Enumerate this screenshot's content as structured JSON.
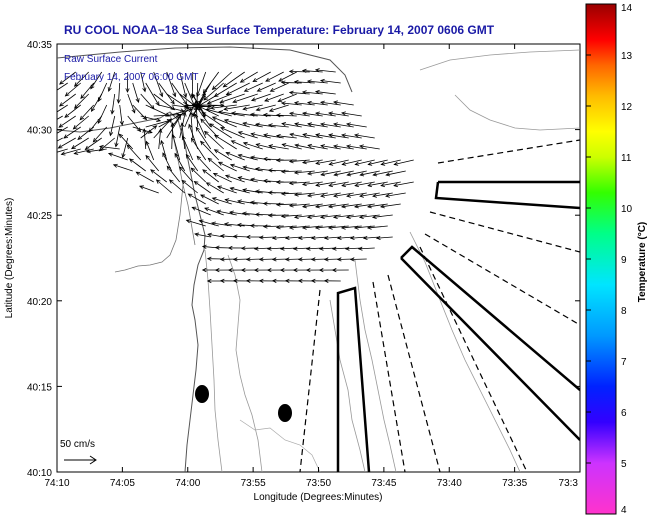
{
  "chart_data": {
    "type": "quiver-map",
    "title": "RU COOL  NOAA−18  Sea Surface Temperature:  February 14, 2007 0606 GMT",
    "inset_label_1": "Raw Surface Current",
    "inset_label_2": "February 14, 2007 06:00 GMT",
    "xlabel": "Longitude (Degrees:Minutes)",
    "ylabel": "Latitude (Degrees:Minutes)",
    "x_ticks": [
      "74:10",
      "74:05",
      "74:00",
      "73:55",
      "73:50",
      "73:45",
      "73:40",
      "73:35",
      "73:3"
    ],
    "y_ticks": [
      "40:35",
      "40:30",
      "40:25",
      "40:20",
      "40:15",
      "40:10"
    ],
    "xlim_deg": [
      -74.1667,
      -73.5
    ],
    "ylim_deg": [
      40.1667,
      40.5833
    ],
    "colorbar": {
      "label": "Temperature (°C)",
      "ticks": [
        "14",
        "13",
        "12",
        "11",
        "10",
        "9",
        "8",
        "7",
        "6",
        "5",
        "4"
      ],
      "range": [
        4,
        14
      ],
      "colors": [
        "#ff33cc",
        "#9900ff",
        "#0000ff",
        "#0099ff",
        "#00ffff",
        "#00ff66",
        "#66ff00",
        "#ffff00",
        "#ff9900",
        "#ff0000",
        "#990000"
      ]
    },
    "scale_label": "50 cm/s",
    "colors": {
      "title": "#1a1aa6",
      "inset": "#1a1aa6",
      "arrows": "#000000",
      "contours": "#999999",
      "coast": "#666666"
    },
    "current_field": {
      "description": "Raw surface current vectors, strongest near Sandy Hook/Raritan Bay outflow, generally flowing westward/northwestward",
      "typical_speed_cm_s": 30
    }
  }
}
